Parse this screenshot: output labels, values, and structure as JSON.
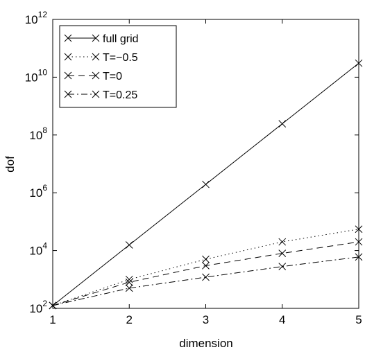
{
  "chart_data": {
    "type": "line",
    "title": "",
    "xlabel": "dimension",
    "ylabel": "dof",
    "xlim": [
      1,
      5
    ],
    "ylim": [
      100,
      1000000000000
    ],
    "yscale": "log",
    "grid": false,
    "legend_position": "top-left",
    "x_ticks": [
      1,
      2,
      3,
      4,
      5
    ],
    "x_tick_labels": [
      "1",
      "2",
      "3",
      "4",
      "5"
    ],
    "y_ticks": [
      100,
      10000,
      1000000,
      100000000,
      10000000000,
      1000000000000
    ],
    "y_tick_labels": [
      {
        "base": "10",
        "exp": "2"
      },
      {
        "base": "10",
        "exp": "4"
      },
      {
        "base": "10",
        "exp": "6"
      },
      {
        "base": "10",
        "exp": "8"
      },
      {
        "base": "10",
        "exp": "10"
      },
      {
        "base": "10",
        "exp": "12"
      }
    ],
    "x": [
      1,
      2,
      3,
      4,
      5
    ],
    "series": [
      {
        "name": "full grid",
        "line_style": "solid",
        "marker": "x",
        "color": "#000000",
        "values": [
          125,
          15625,
          1953125,
          244140625,
          30517578125
        ]
      },
      {
        "name": "T=−0.5",
        "line_style": "dotted",
        "marker": "x",
        "color": "#000000",
        "values": [
          125,
          1000,
          5000,
          20000,
          55000
        ]
      },
      {
        "name": "T=0",
        "line_style": "dashed",
        "marker": "x",
        "color": "#000000",
        "values": [
          125,
          800,
          3000,
          8000,
          20000
        ]
      },
      {
        "name": "T=0.25",
        "line_style": "dashdot",
        "marker": "x",
        "color": "#000000",
        "values": [
          125,
          500,
          1200,
          2800,
          6000
        ]
      }
    ]
  }
}
